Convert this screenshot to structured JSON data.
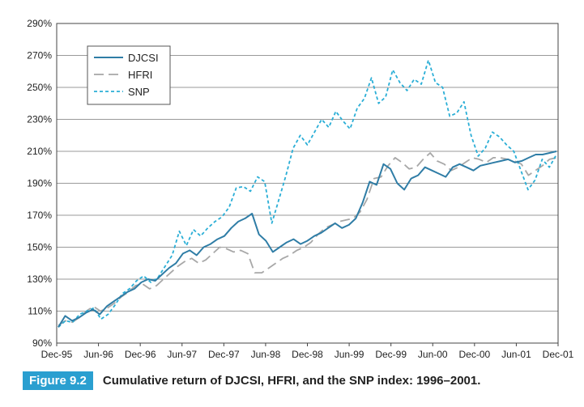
{
  "colors": {
    "DJCSI": "#2f7da6",
    "HFRI": "#a8a8a8",
    "SNP": "#2aaed6",
    "badge": "#2a9fd0"
  },
  "caption": {
    "figure_label": "Figure 9.2",
    "text": "Cumulative return of DJCSI, HFRI, and the SNP index: 1996–2001."
  },
  "chart_data": {
    "type": "line",
    "title": "",
    "xlabel": "",
    "ylabel": "",
    "ylim": [
      90,
      290
    ],
    "grid": "horizontal",
    "legend_position": "top-left",
    "y_ticks": [
      90,
      110,
      130,
      150,
      170,
      190,
      210,
      230,
      250,
      270,
      290
    ],
    "y_tick_labels": [
      "90%",
      "110%",
      "130%",
      "150%",
      "170%",
      "190%",
      "210%",
      "230%",
      "250%",
      "270%",
      "290%"
    ],
    "x_tick_labels": [
      "Dec-95",
      "Jun-96",
      "Dec-96",
      "Jun-97",
      "Dec-97",
      "Jun-98",
      "Dec-98",
      "Jun-99",
      "Dec-99",
      "Jun-00",
      "Dec-00",
      "Jun-01",
      "Dec-01"
    ],
    "x_start": "Dec-95",
    "x_end": "Dec-01",
    "series": [
      {
        "name": "DJCSI",
        "style": "solid",
        "color": "#2f7da6",
        "values": [
          100,
          107,
          104,
          106,
          109,
          111,
          108,
          113,
          116,
          119,
          122,
          124,
          128,
          130,
          129,
          133,
          137,
          140,
          146,
          148,
          145,
          150,
          152,
          155,
          157,
          162,
          166,
          168,
          171,
          158,
          154,
          147,
          150,
          153,
          155,
          152,
          154,
          157,
          159,
          162,
          165,
          162,
          164,
          168,
          178,
          191,
          189,
          202,
          199,
          190,
          186,
          193,
          195,
          200,
          198,
          196,
          194,
          200,
          202,
          200,
          198,
          201,
          202,
          203,
          204,
          205,
          203,
          204,
          206,
          208,
          208,
          209,
          210
        ]
      },
      {
        "name": "HFRI",
        "style": "dashed-long",
        "color": "#a8a8a8",
        "values": [
          101,
          104,
          103,
          106,
          110,
          113,
          110,
          112,
          115,
          119,
          122,
          126,
          127,
          124,
          126,
          130,
          134,
          138,
          141,
          143,
          140,
          142,
          146,
          150,
          149,
          147,
          148,
          146,
          134,
          134,
          137,
          140,
          143,
          145,
          148,
          150,
          153,
          158,
          162,
          164,
          166,
          167,
          168,
          172,
          180,
          193,
          194,
          201,
          206,
          203,
          199,
          200,
          205,
          209,
          204,
          202,
          198,
          200,
          203,
          206,
          205,
          203,
          206,
          206,
          205,
          204,
          202,
          195,
          198,
          201,
          205,
          206
        ]
      },
      {
        "name": "SNP",
        "style": "dotted",
        "color": "#2aaed6",
        "values": [
          100,
          104,
          103,
          108,
          110,
          112,
          105,
          108,
          114,
          121,
          124,
          129,
          132,
          128,
          131,
          138,
          145,
          160,
          151,
          161,
          157,
          162,
          166,
          169,
          175,
          187,
          188,
          185,
          194,
          191,
          165,
          180,
          195,
          212,
          220,
          214,
          222,
          230,
          225,
          235,
          229,
          224,
          237,
          243,
          256,
          240,
          244,
          261,
          253,
          248,
          255,
          252,
          267,
          253,
          250,
          232,
          234,
          241,
          220,
          207,
          212,
          222,
          219,
          214,
          210,
          198,
          186,
          192,
          205,
          200,
          208
        ]
      }
    ]
  }
}
